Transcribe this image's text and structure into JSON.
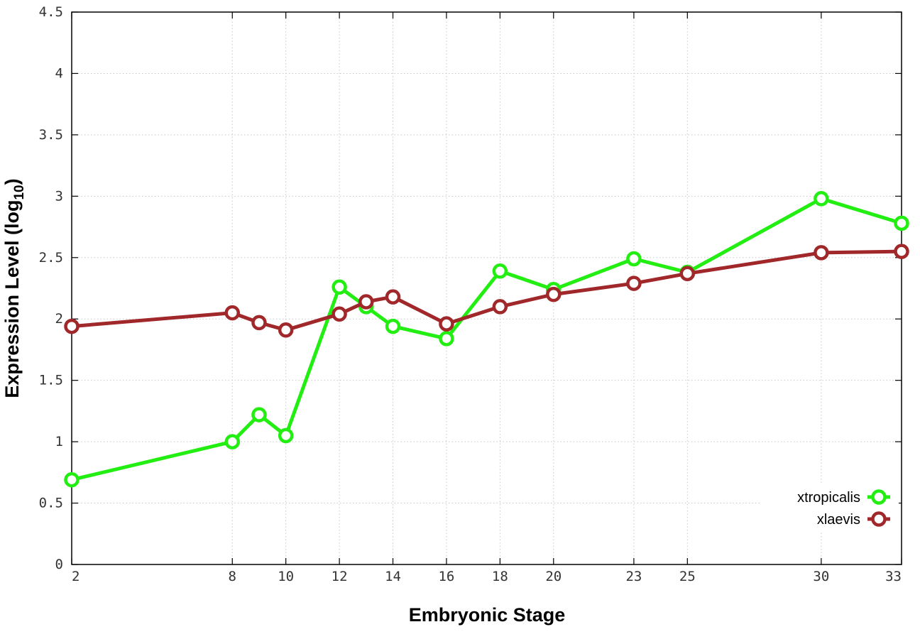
{
  "chart_data": {
    "type": "line",
    "xlabel": "Embryonic Stage",
    "ylabel_main": "Expression Level (log",
    "ylabel_sub": "10",
    "ylabel_end": ")",
    "xlim": [
      2,
      33
    ],
    "ylim": [
      0,
      4.5
    ],
    "x_ticks": [
      2,
      8,
      10,
      12,
      14,
      16,
      18,
      20,
      23,
      25,
      30,
      33
    ],
    "x_tick_labels": [
      "2",
      "8",
      "10",
      "12",
      "14",
      "16",
      "18",
      "20",
      "23",
      "25",
      "30",
      "33"
    ],
    "y_ticks": [
      0,
      0.5,
      1,
      1.5,
      2,
      2.5,
      3,
      3.5,
      4,
      4.5
    ],
    "y_tick_labels": [
      "0",
      "0.5",
      "1",
      "1.5",
      "2",
      "2.5",
      "3",
      "3.5",
      "4",
      "4.5"
    ],
    "grid": true,
    "legend_position": "bottom-right",
    "series": [
      {
        "name": "xtropicalis",
        "color": "#22ee11",
        "x": [
          2,
          8,
          9,
          10,
          12,
          13,
          14,
          16,
          18,
          20,
          23,
          25,
          30,
          33
        ],
        "y": [
          0.69,
          1.0,
          1.22,
          1.05,
          2.26,
          2.1,
          1.94,
          1.84,
          2.39,
          2.24,
          2.49,
          2.38,
          2.98,
          2.78
        ]
      },
      {
        "name": "xlaevis",
        "color": "#a0282a",
        "x": [
          2,
          8,
          9,
          10,
          12,
          13,
          14,
          16,
          18,
          20,
          23,
          25,
          30,
          33
        ],
        "y": [
          1.94,
          2.05,
          1.97,
          1.91,
          2.04,
          2.14,
          2.18,
          1.96,
          2.1,
          2.2,
          2.29,
          2.37,
          2.54,
          2.55
        ]
      }
    ]
  }
}
